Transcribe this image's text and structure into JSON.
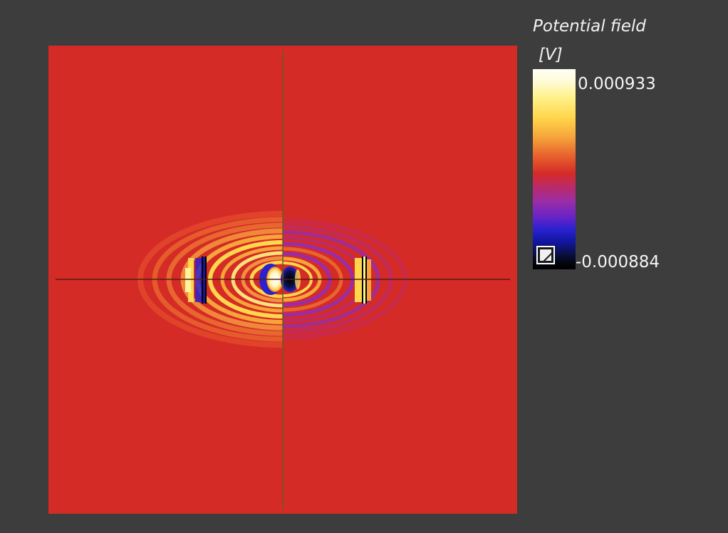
{
  "legend": {
    "title": "Potential field",
    "unit": "[V]",
    "max_label": "0.000933",
    "min_label": "-0.000884",
    "range_toggle_icon": "diagonal-slash-icon"
  },
  "colors": {
    "background": "#3d3d3d",
    "field_baseline": "#d52b26",
    "crosshair": "#6b5a1a"
  },
  "colormap_stops": [
    "#fffef6",
    "#fff28a",
    "#ffd74c",
    "#f6a53a",
    "#e8642e",
    "#d52b26",
    "#bf2a60",
    "#9a2da6",
    "#6823c8",
    "#2a22cf",
    "#1216a2",
    "#04050d"
  ]
}
